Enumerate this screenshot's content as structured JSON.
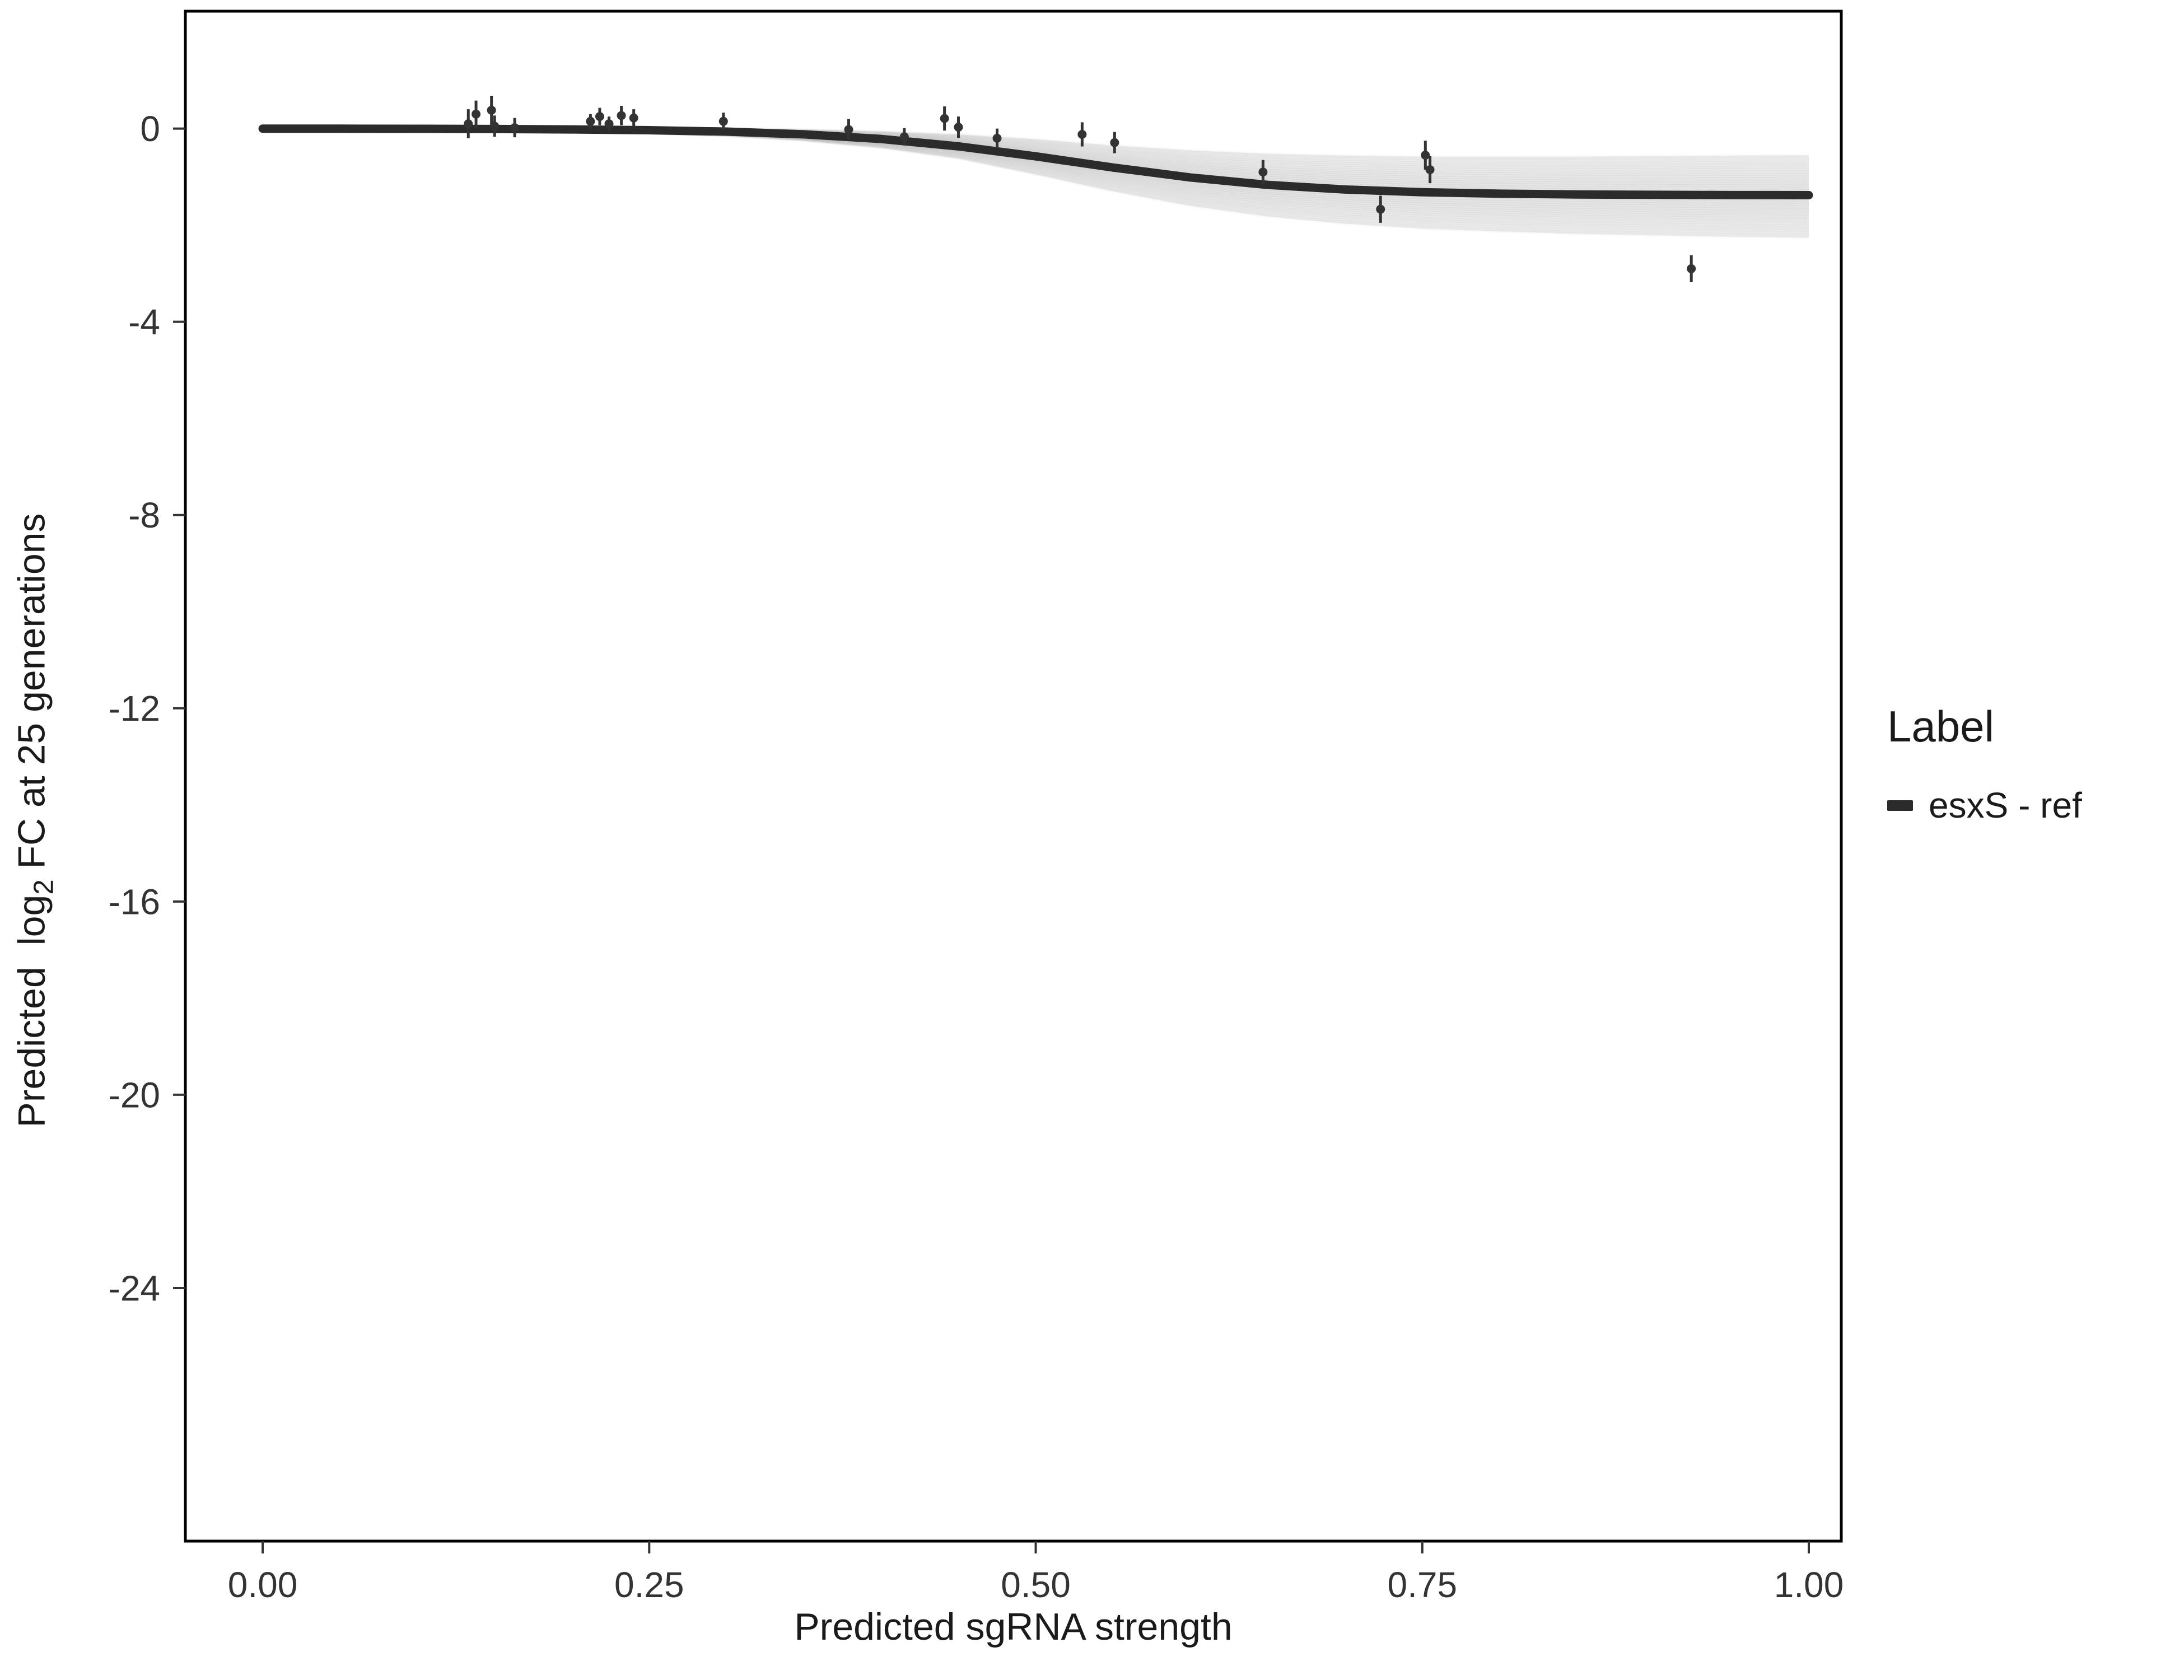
{
  "figure": {
    "xlabel": "Predicted sgRNA strength",
    "ylabel_pre": "Predicted  log",
    "ylabel_sub": "2",
    "ylabel_post": " FC at 25 generations"
  },
  "legend": {
    "title": "Label",
    "entries": [
      {
        "label": "esxS - ref",
        "color": "#2b2b2b"
      }
    ]
  },
  "chart_data": {
    "type": "scatter",
    "title": "",
    "xlabel": "Predicted sgRNA strength",
    "ylabel": "Predicted log2 FC at 25 generations",
    "legend_title": "Label",
    "legend_position": "right",
    "grid": false,
    "xlim": [
      -0.05,
      1.021
    ],
    "ylim": [
      -29.24,
      2.43
    ],
    "x_ticks": {
      "values": [
        0,
        0.25,
        0.5,
        0.75,
        1.0
      ],
      "labels": [
        "0.00",
        "0.25",
        "0.50",
        "0.75",
        "1.00"
      ]
    },
    "y_ticks": {
      "values": [
        0,
        -4,
        -8,
        -12,
        -16,
        -20,
        -24
      ],
      "labels": [
        "0",
        "-4",
        "-8",
        "-12",
        "-16",
        "-20",
        "-24"
      ]
    },
    "points": [
      [
        0.133,
        0.1,
        0.3
      ],
      [
        0.138,
        0.3,
        0.28
      ],
      [
        0.148,
        0.38,
        0.3
      ],
      [
        0.15,
        0.05,
        0.22
      ],
      [
        0.163,
        0.02,
        0.2
      ],
      [
        0.212,
        0.15,
        0.15
      ],
      [
        0.218,
        0.25,
        0.18
      ],
      [
        0.224,
        0.1,
        0.15
      ],
      [
        0.232,
        0.27,
        0.2
      ],
      [
        0.24,
        0.22,
        0.18
      ],
      [
        0.298,
        0.15,
        0.18
      ],
      [
        0.379,
        -0.02,
        0.22
      ],
      [
        0.415,
        -0.17,
        0.18
      ],
      [
        0.441,
        0.21,
        0.25
      ],
      [
        0.45,
        0.03,
        0.22
      ],
      [
        0.475,
        -0.2,
        0.2
      ],
      [
        0.53,
        -0.12,
        0.25
      ],
      [
        0.551,
        -0.29,
        0.22
      ],
      [
        0.647,
        -0.9,
        0.25
      ],
      [
        0.723,
        -1.67,
        0.28
      ],
      [
        0.752,
        -0.55,
        0.3
      ],
      [
        0.755,
        -0.85,
        0.28
      ],
      [
        0.924,
        -2.9,
        0.28
      ]
    ],
    "curve": {
      "name": "esxS - ref",
      "x": [
        0,
        0.05,
        0.1,
        0.15,
        0.2,
        0.25,
        0.3,
        0.35,
        0.4,
        0.45,
        0.5,
        0.55,
        0.6,
        0.65,
        0.7,
        0.75,
        0.8,
        0.85,
        0.9,
        0.95,
        1.0
      ],
      "y": [
        -0.001,
        -0.002,
        -0.004,
        -0.009,
        -0.017,
        -0.033,
        -0.063,
        -0.119,
        -0.215,
        -0.368,
        -0.575,
        -0.806,
        -1.012,
        -1.165,
        -1.261,
        -1.317,
        -1.347,
        -1.363,
        -1.371,
        -1.376,
        -1.378
      ]
    },
    "band": {
      "x": [
        0,
        0.05,
        0.1,
        0.15,
        0.2,
        0.25,
        0.3,
        0.35,
        0.4,
        0.45,
        0.5,
        0.55,
        0.6,
        0.65,
        0.7,
        0.75,
        0.8,
        0.85,
        0.9,
        0.95,
        1.0
      ],
      "upper": [
        0.03,
        0.03,
        0.03,
        0.02,
        0.02,
        0.01,
        0.0,
        -0.02,
        -0.06,
        -0.12,
        -0.22,
        -0.35,
        -0.45,
        -0.52,
        -0.56,
        -0.58,
        -0.58,
        -0.58,
        -0.57,
        -0.56,
        -0.55
      ],
      "lower": [
        -0.03,
        -0.03,
        -0.04,
        -0.05,
        -0.07,
        -0.1,
        -0.15,
        -0.25,
        -0.4,
        -0.62,
        -0.95,
        -1.3,
        -1.6,
        -1.82,
        -1.97,
        -2.07,
        -2.13,
        -2.18,
        -2.21,
        -2.24,
        -2.26
      ]
    },
    "colors": {
      "curve": "#2b2b2b",
      "point": "#333333",
      "band": "#9a9a9a",
      "panel_border": "#000000",
      "tick": "#333333",
      "tick_label": "#333333"
    }
  }
}
